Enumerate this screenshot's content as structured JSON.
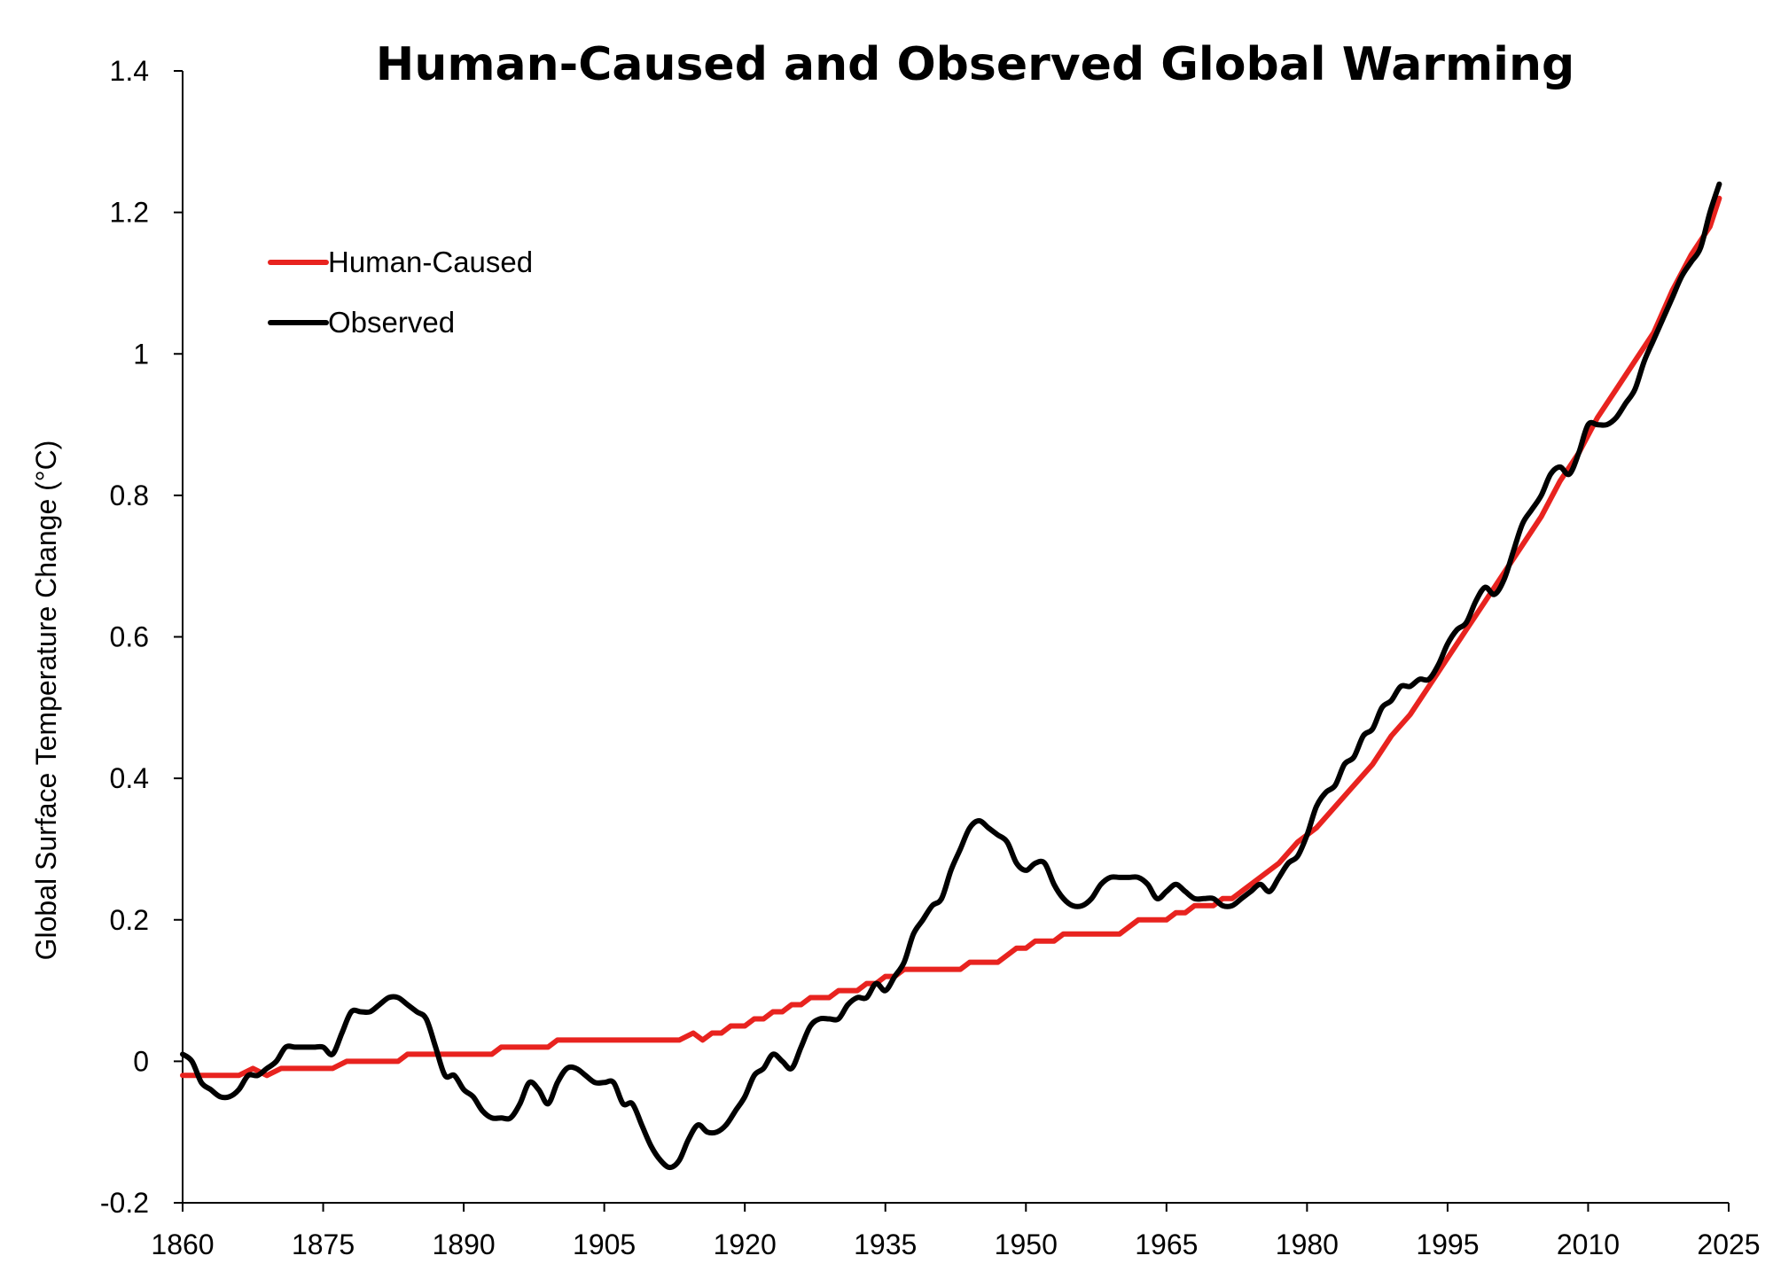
{
  "chart_data": {
    "type": "line",
    "title": "Human-Caused and Observed Global Warming",
    "xlabel": "",
    "ylabel": "Global Surface Temperature Change (°C)",
    "xlim": [
      1860,
      2025
    ],
    "ylim": [
      -0.2,
      1.4
    ],
    "x_ticks": [
      "1860",
      "1875",
      "1890",
      "1905",
      "1920",
      "1935",
      "1950",
      "1965",
      "1980",
      "1995",
      "2010",
      "2025"
    ],
    "y_ticks": [
      "-0.2",
      "0",
      "0.2",
      "0.4",
      "0.6",
      "0.8",
      "1",
      "1.2",
      "1.4"
    ],
    "grid": false,
    "legend_position": "top-left",
    "series": [
      {
        "name": "Human-Caused",
        "color": "#e8231f",
        "points": [
          [
            1860,
            -0.02
          ],
          [
            1866,
            -0.02
          ],
          [
            1867.5,
            -0.01
          ],
          [
            1869,
            -0.02
          ],
          [
            1870.5,
            -0.01
          ],
          [
            1876,
            -0.01
          ],
          [
            1877.5,
            0.0
          ],
          [
            1883,
            0.0
          ],
          [
            1884,
            0.01
          ],
          [
            1893,
            0.01
          ],
          [
            1894,
            0.02
          ],
          [
            1899,
            0.02
          ],
          [
            1900,
            0.03
          ],
          [
            1913,
            0.03
          ],
          [
            1914.5,
            0.04
          ],
          [
            1915.5,
            0.03
          ],
          [
            1916.5,
            0.04
          ],
          [
            1917.5,
            0.04
          ],
          [
            1918.5,
            0.05
          ],
          [
            1920,
            0.05
          ],
          [
            1921,
            0.06
          ],
          [
            1922,
            0.06
          ],
          [
            1923,
            0.07
          ],
          [
            1924,
            0.07
          ],
          [
            1925,
            0.08
          ],
          [
            1926,
            0.08
          ],
          [
            1927,
            0.09
          ],
          [
            1929,
            0.09
          ],
          [
            1930,
            0.1
          ],
          [
            1932,
            0.1
          ],
          [
            1933,
            0.11
          ],
          [
            1934,
            0.11
          ],
          [
            1935,
            0.12
          ],
          [
            1936,
            0.12
          ],
          [
            1937,
            0.13
          ],
          [
            1943,
            0.13
          ],
          [
            1944,
            0.14
          ],
          [
            1947,
            0.14
          ],
          [
            1949,
            0.16
          ],
          [
            1950,
            0.16
          ],
          [
            1951,
            0.17
          ],
          [
            1953,
            0.17
          ],
          [
            1954,
            0.18
          ],
          [
            1960,
            0.18
          ],
          [
            1962,
            0.2
          ],
          [
            1965,
            0.2
          ],
          [
            1966,
            0.21
          ],
          [
            1967,
            0.21
          ],
          [
            1968,
            0.22
          ],
          [
            1970,
            0.22
          ],
          [
            1971,
            0.23
          ],
          [
            1972,
            0.23
          ],
          [
            1973,
            0.24
          ],
          [
            1975,
            0.26
          ],
          [
            1977,
            0.28
          ],
          [
            1979,
            0.31
          ],
          [
            1981,
            0.33
          ],
          [
            1983,
            0.36
          ],
          [
            1985,
            0.39
          ],
          [
            1987,
            0.42
          ],
          [
            1989,
            0.46
          ],
          [
            1991,
            0.49
          ],
          [
            1993,
            0.53
          ],
          [
            1995,
            0.57
          ],
          [
            1997,
            0.61
          ],
          [
            1999,
            0.65
          ],
          [
            2001,
            0.69
          ],
          [
            2003,
            0.73
          ],
          [
            2005,
            0.77
          ],
          [
            2007,
            0.82
          ],
          [
            2009,
            0.86
          ],
          [
            2011,
            0.91
          ],
          [
            2013,
            0.95
          ],
          [
            2015,
            0.99
          ],
          [
            2017,
            1.03
          ],
          [
            2019,
            1.09
          ],
          [
            2021,
            1.14
          ],
          [
            2023,
            1.18
          ],
          [
            2024,
            1.22
          ]
        ]
      },
      {
        "name": "Observed",
        "color": "#000000",
        "points": [
          [
            1860,
            0.01
          ],
          [
            1861,
            0.0
          ],
          [
            1862,
            -0.03
          ],
          [
            1863,
            -0.04
          ],
          [
            1864,
            -0.05
          ],
          [
            1865,
            -0.05
          ],
          [
            1866,
            -0.04
          ],
          [
            1867,
            -0.02
          ],
          [
            1868,
            -0.02
          ],
          [
            1869,
            -0.01
          ],
          [
            1870,
            0.0
          ],
          [
            1871,
            0.02
          ],
          [
            1872,
            0.02
          ],
          [
            1873,
            0.02
          ],
          [
            1874,
            0.02
          ],
          [
            1875,
            0.02
          ],
          [
            1876,
            0.01
          ],
          [
            1877,
            0.04
          ],
          [
            1878,
            0.07
          ],
          [
            1879,
            0.07
          ],
          [
            1880,
            0.07
          ],
          [
            1881,
            0.08
          ],
          [
            1882,
            0.09
          ],
          [
            1883,
            0.09
          ],
          [
            1884,
            0.08
          ],
          [
            1885,
            0.07
          ],
          [
            1886,
            0.06
          ],
          [
            1887,
            0.02
          ],
          [
            1888,
            -0.02
          ],
          [
            1889,
            -0.02
          ],
          [
            1890,
            -0.04
          ],
          [
            1891,
            -0.05
          ],
          [
            1892,
            -0.07
          ],
          [
            1893,
            -0.08
          ],
          [
            1894,
            -0.08
          ],
          [
            1895,
            -0.08
          ],
          [
            1896,
            -0.06
          ],
          [
            1897,
            -0.03
          ],
          [
            1898,
            -0.04
          ],
          [
            1899,
            -0.06
          ],
          [
            1900,
            -0.03
          ],
          [
            1901,
            -0.01
          ],
          [
            1902,
            -0.01
          ],
          [
            1903,
            -0.02
          ],
          [
            1904,
            -0.03
          ],
          [
            1905,
            -0.03
          ],
          [
            1906,
            -0.03
          ],
          [
            1907,
            -0.06
          ],
          [
            1908,
            -0.06
          ],
          [
            1909,
            -0.09
          ],
          [
            1910,
            -0.12
          ],
          [
            1911,
            -0.14
          ],
          [
            1912,
            -0.15
          ],
          [
            1913,
            -0.14
          ],
          [
            1914,
            -0.11
          ],
          [
            1915,
            -0.09
          ],
          [
            1916,
            -0.1
          ],
          [
            1917,
            -0.1
          ],
          [
            1918,
            -0.09
          ],
          [
            1919,
            -0.07
          ],
          [
            1920,
            -0.05
          ],
          [
            1921,
            -0.02
          ],
          [
            1922,
            -0.01
          ],
          [
            1923,
            0.01
          ],
          [
            1924,
            0.0
          ],
          [
            1925,
            -0.01
          ],
          [
            1926,
            0.02
          ],
          [
            1927,
            0.05
          ],
          [
            1928,
            0.06
          ],
          [
            1929,
            0.06
          ],
          [
            1930,
            0.06
          ],
          [
            1931,
            0.08
          ],
          [
            1932,
            0.09
          ],
          [
            1933,
            0.09
          ],
          [
            1934,
            0.11
          ],
          [
            1935,
            0.1
          ],
          [
            1936,
            0.12
          ],
          [
            1937,
            0.14
          ],
          [
            1938,
            0.18
          ],
          [
            1939,
            0.2
          ],
          [
            1940,
            0.22
          ],
          [
            1941,
            0.23
          ],
          [
            1942,
            0.27
          ],
          [
            1943,
            0.3
          ],
          [
            1944,
            0.33
          ],
          [
            1945,
            0.34
          ],
          [
            1946,
            0.33
          ],
          [
            1947,
            0.32
          ],
          [
            1948,
            0.31
          ],
          [
            1949,
            0.28
          ],
          [
            1950,
            0.27
          ],
          [
            1951,
            0.28
          ],
          [
            1952,
            0.28
          ],
          [
            1953,
            0.25
          ],
          [
            1954,
            0.23
          ],
          [
            1955,
            0.22
          ],
          [
            1956,
            0.22
          ],
          [
            1957,
            0.23
          ],
          [
            1958,
            0.25
          ],
          [
            1959,
            0.26
          ],
          [
            1960,
            0.26
          ],
          [
            1961,
            0.26
          ],
          [
            1962,
            0.26
          ],
          [
            1963,
            0.25
          ],
          [
            1964,
            0.23
          ],
          [
            1965,
            0.24
          ],
          [
            1966,
            0.25
          ],
          [
            1967,
            0.24
          ],
          [
            1968,
            0.23
          ],
          [
            1969,
            0.23
          ],
          [
            1970,
            0.23
          ],
          [
            1971,
            0.22
          ],
          [
            1972,
            0.22
          ],
          [
            1973,
            0.23
          ],
          [
            1974,
            0.24
          ],
          [
            1975,
            0.25
          ],
          [
            1976,
            0.24
          ],
          [
            1977,
            0.26
          ],
          [
            1978,
            0.28
          ],
          [
            1979,
            0.29
          ],
          [
            1980,
            0.32
          ],
          [
            1981,
            0.36
          ],
          [
            1982,
            0.38
          ],
          [
            1983,
            0.39
          ],
          [
            1984,
            0.42
          ],
          [
            1985,
            0.43
          ],
          [
            1986,
            0.46
          ],
          [
            1987,
            0.47
          ],
          [
            1988,
            0.5
          ],
          [
            1989,
            0.51
          ],
          [
            1990,
            0.53
          ],
          [
            1991,
            0.53
          ],
          [
            1992,
            0.54
          ],
          [
            1993,
            0.54
          ],
          [
            1994,
            0.56
          ],
          [
            1995,
            0.59
          ],
          [
            1996,
            0.61
          ],
          [
            1997,
            0.62
          ],
          [
            1998,
            0.65
          ],
          [
            1999,
            0.67
          ],
          [
            2000,
            0.66
          ],
          [
            2001,
            0.68
          ],
          [
            2002,
            0.72
          ],
          [
            2003,
            0.76
          ],
          [
            2004,
            0.78
          ],
          [
            2005,
            0.8
          ],
          [
            2006,
            0.83
          ],
          [
            2007,
            0.84
          ],
          [
            2008,
            0.83
          ],
          [
            2009,
            0.86
          ],
          [
            2010,
            0.9
          ],
          [
            2011,
            0.9
          ],
          [
            2012,
            0.9
          ],
          [
            2013,
            0.91
          ],
          [
            2014,
            0.93
          ],
          [
            2015,
            0.95
          ],
          [
            2016,
            0.99
          ],
          [
            2017,
            1.02
          ],
          [
            2018,
            1.05
          ],
          [
            2019,
            1.08
          ],
          [
            2020,
            1.11
          ],
          [
            2021,
            1.13
          ],
          [
            2022,
            1.15
          ],
          [
            2023,
            1.2
          ],
          [
            2024,
            1.24
          ]
        ]
      }
    ]
  }
}
